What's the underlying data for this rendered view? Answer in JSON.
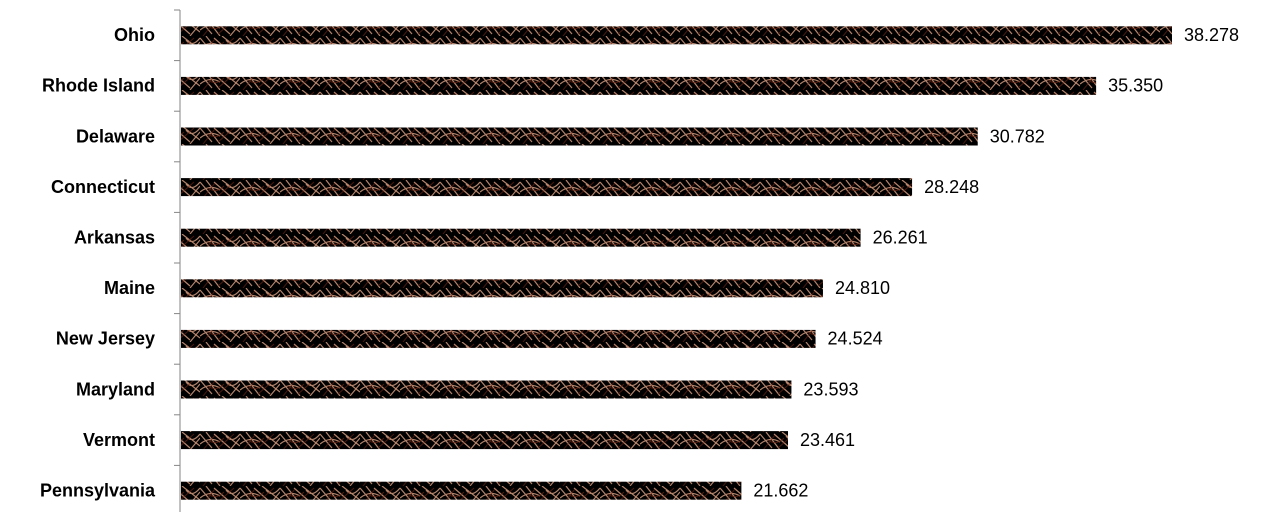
{
  "chart_data": {
    "type": "bar",
    "orientation": "horizontal",
    "categories": [
      "Ohio",
      "Rhode Island",
      "Delaware",
      "Connecticut",
      "Arkansas",
      "Maine",
      "New Jersey",
      "Maryland",
      "Vermont",
      "Pennsylvania"
    ],
    "values": [
      38.278,
      35.35,
      30.782,
      28.248,
      26.261,
      24.81,
      24.524,
      23.593,
      23.461,
      21.662
    ],
    "value_labels": [
      "38.278",
      "35.350",
      "30.782",
      "28.248",
      "26.261",
      "24.810",
      "24.524",
      "23.593",
      "23.461",
      "21.662"
    ],
    "color": "#a84a2a"
  }
}
